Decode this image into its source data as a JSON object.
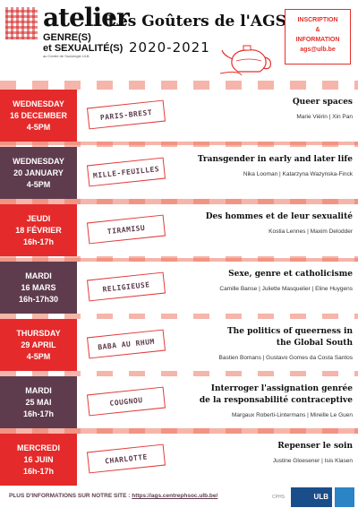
{
  "header": {
    "logo_word": "atelier",
    "logo_line1": "GENRE(S)",
    "logo_line2": "et SEXUALITÉ(S)",
    "logo_tagline": "au Centre de Sociologie ULB",
    "title": "Les Goûters de l'AGS",
    "year": "2020-2021",
    "info": {
      "line1": "INSCRIPTION",
      "line2": "&",
      "line3": "INFORMATION",
      "email": "ags@ulb.be"
    }
  },
  "sessions": [
    {
      "day": "WEDNESDAY",
      "date": "16 DECEMBER",
      "time": "4-5PM",
      "cake": "PARIS-BREST",
      "title_line1": "Queer spaces",
      "title_line2": "",
      "speakers": "Marie Viérin | Xin Pan"
    },
    {
      "day": "WEDNESDAY",
      "date": "20 JANUARY",
      "time": "4-5PM",
      "cake": "MILLE-FEUILLES",
      "title_line1": "Transgender in early and later life",
      "title_line2": "",
      "speakers": "Nika Looman | Katarzyna Wazynska-Finck"
    },
    {
      "day": "JEUDI",
      "date": "18 FÉVRIER",
      "time": "16h-17h",
      "cake": "TIRAMISU",
      "title_line1": "Des hommes et de leur sexualité",
      "title_line2": "",
      "speakers": "Kostia Lennes | Maxim Delodder"
    },
    {
      "day": "MARDI",
      "date": "16 MARS",
      "time": "16h-17h30",
      "cake": "RELIGIEUSE",
      "title_line1": "Sexe, genre et catholicisme",
      "title_line2": "",
      "speakers": "Camille Banse | Juliette Masquelier | Eline Huygens"
    },
    {
      "day": "THURSDAY",
      "date": "29 APRIL",
      "time": "4-5PM",
      "cake": "BABA AU RHUM",
      "title_line1": "The politics of queerness in",
      "title_line2": "the Global South",
      "speakers": "Bastien Bomans | Gustavo Gomes da Costa Santos"
    },
    {
      "day": "MARDI",
      "date": "25 MAI",
      "time": "16h-17h",
      "cake": "COUGNOU",
      "title_line1": "Interroger l'assignation genrée",
      "title_line2": "de la responsabilité contraceptive",
      "speakers": "Margaux Roberti-Lintermans | Mireille Le Guen"
    },
    {
      "day": "MERCREDI",
      "date": "16 JUIN",
      "time": "16h-17h",
      "cake": "CHARLOTTE",
      "title_line1": "Repenser le soin",
      "title_line2": "",
      "speakers": "Justine Gloesener | Isis Klasen"
    }
  ],
  "footer": {
    "text": "PLUS D'INFORMATIONS SUR NOTRE SITE : ",
    "link": "https://ags.centrephsoc.ulb.be/",
    "logo1": "CPHS",
    "logo2": "ULB"
  },
  "colors": {
    "red": "#e42a2a",
    "plum": "#5e3c4d",
    "gingham": "#ee7864"
  }
}
